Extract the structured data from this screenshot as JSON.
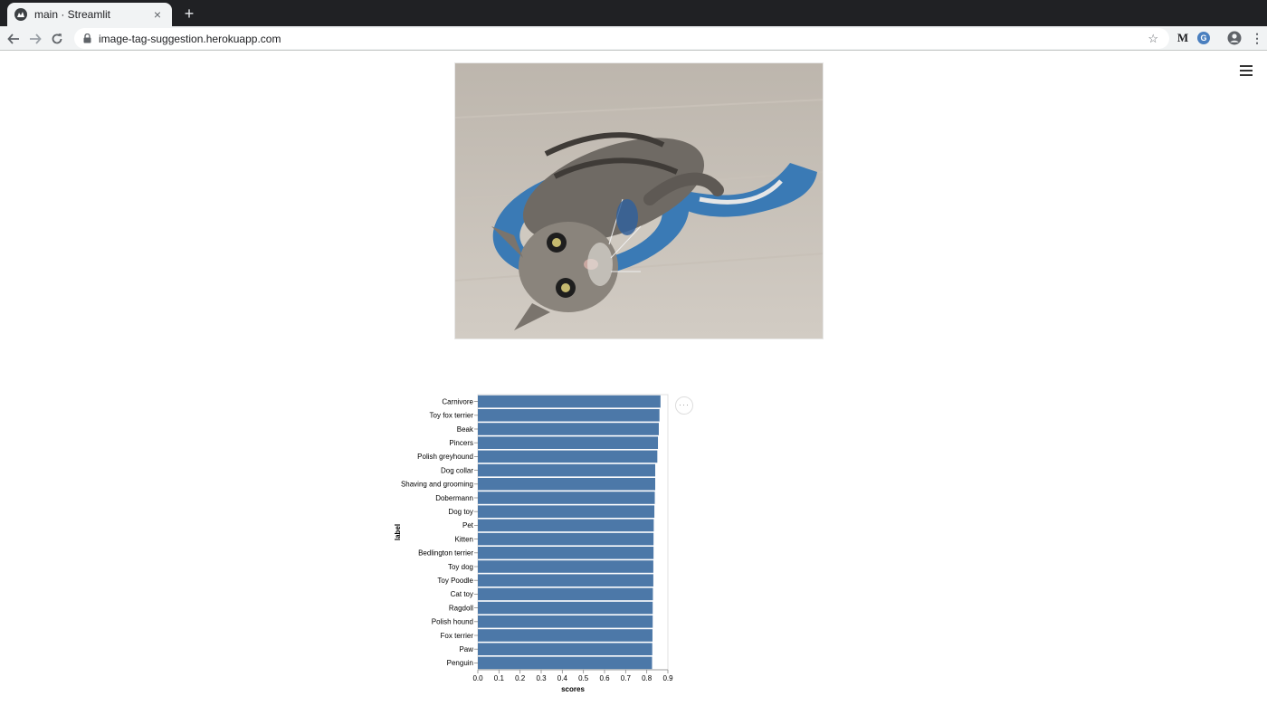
{
  "browser": {
    "tab_title": "main · Streamlit",
    "tab_close": "×",
    "new_tab": "+",
    "url": "image-tag-suggestion.herokuapp.com",
    "star": "☆",
    "ext_m": "M",
    "ext_c": "G",
    "menu": "⋮"
  },
  "page": {
    "image_icon": "cat-photo-image",
    "vega_menu": "···"
  },
  "chart_data": {
    "type": "bar",
    "orientation": "horizontal",
    "xlabel": "scores",
    "ylabel": "label",
    "xlim": [
      0,
      0.9
    ],
    "xticks": [
      "0.0",
      "0.1",
      "0.2",
      "0.3",
      "0.4",
      "0.5",
      "0.6",
      "0.7",
      "0.8",
      "0.9"
    ],
    "bar_color": "#4c78a8",
    "categories": [
      "Carnivore",
      "Toy fox terrier",
      "Beak",
      "Pincers",
      "Polish greyhound",
      "Dog collar",
      "Shaving and grooming",
      "Dobermann",
      "Dog toy",
      "Pet",
      "Kitten",
      "Bedlington terrier",
      "Toy dog",
      "Toy Poodle",
      "Cat toy",
      "Ragdoll",
      "Polish hound",
      "Fox terrier",
      "Paw",
      "Penguin"
    ],
    "values": [
      0.865,
      0.86,
      0.857,
      0.853,
      0.85,
      0.84,
      0.84,
      0.838,
      0.836,
      0.833,
      0.832,
      0.832,
      0.831,
      0.831,
      0.829,
      0.828,
      0.828,
      0.827,
      0.826,
      0.825
    ]
  }
}
